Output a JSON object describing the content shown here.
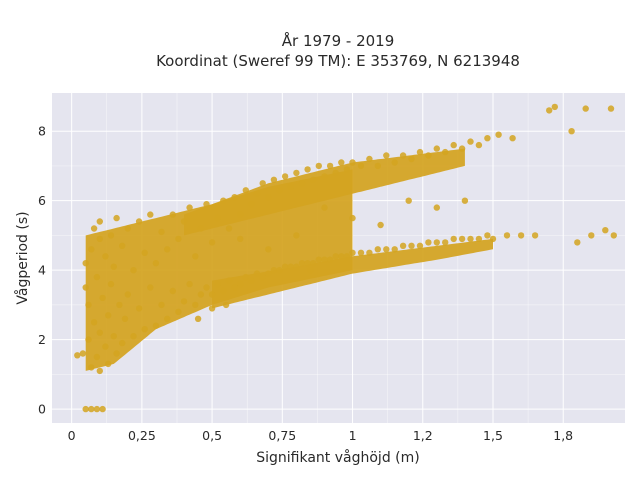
{
  "chart_data": {
    "type": "scatter",
    "title": "År 1979 - 2019",
    "subtitle": "Koordinat (Sweref 99 TM): E 353769, N 6213948",
    "xlabel": "Signifikant våghöjd (m)",
    "ylabel": "Vågperiod (s)",
    "xlim": [
      -0.07,
      1.97
    ],
    "ylim": [
      -0.4,
      9.1
    ],
    "x_ticks": [
      0,
      0.25,
      0.5,
      0.75,
      1,
      1.25,
      1.5,
      1.75
    ],
    "x_tick_labels": [
      "0",
      "0,25",
      "0,5",
      "0,75",
      "1",
      "1,2",
      "1,5",
      "1,8"
    ],
    "y_ticks": [
      0,
      2,
      4,
      6,
      8
    ],
    "y_tick_labels": [
      "0",
      "2",
      "4",
      "6",
      "8"
    ],
    "grid": true,
    "colors": {
      "marker": "#d4a420",
      "plot_bg": "#e5e5ef",
      "grid": "#ffffff"
    },
    "series": [
      {
        "points": [
          [
            0.05,
            0.0
          ],
          [
            0.07,
            0.0
          ],
          [
            0.09,
            0.0
          ],
          [
            0.11,
            0.0
          ],
          [
            0.02,
            1.55
          ],
          [
            0.04,
            1.6
          ],
          [
            0.05,
            3.5
          ],
          [
            0.05,
            4.2
          ],
          [
            0.06,
            2.0
          ],
          [
            0.06,
            3.0
          ],
          [
            0.07,
            1.2
          ],
          [
            0.07,
            4.6
          ],
          [
            0.08,
            2.5
          ],
          [
            0.08,
            5.2
          ],
          [
            0.09,
            1.5
          ],
          [
            0.09,
            3.8
          ],
          [
            0.1,
            1.1
          ],
          [
            0.1,
            2.2
          ],
          [
            0.1,
            4.9
          ],
          [
            0.1,
            5.4
          ],
          [
            0.11,
            3.2
          ],
          [
            0.12,
            1.8
          ],
          [
            0.12,
            4.4
          ],
          [
            0.13,
            1.3
          ],
          [
            0.13,
            2.7
          ],
          [
            0.14,
            3.6
          ],
          [
            0.14,
            5.0
          ],
          [
            0.15,
            2.1
          ],
          [
            0.15,
            4.1
          ],
          [
            0.16,
            1.6
          ],
          [
            0.16,
            5.5
          ],
          [
            0.17,
            3.0
          ],
          [
            0.18,
            1.9
          ],
          [
            0.18,
            4.7
          ],
          [
            0.19,
            2.6
          ],
          [
            0.2,
            3.3
          ],
          [
            0.2,
            5.2
          ],
          [
            0.22,
            2.1
          ],
          [
            0.22,
            4.0
          ],
          [
            0.24,
            2.9
          ],
          [
            0.24,
            5.4
          ],
          [
            0.26,
            2.3
          ],
          [
            0.26,
            4.5
          ],
          [
            0.28,
            3.5
          ],
          [
            0.28,
            5.6
          ],
          [
            0.3,
            2.4
          ],
          [
            0.3,
            4.2
          ],
          [
            0.32,
            3.0
          ],
          [
            0.32,
            5.1
          ],
          [
            0.34,
            2.6
          ],
          [
            0.34,
            4.6
          ],
          [
            0.36,
            3.4
          ],
          [
            0.36,
            5.6
          ],
          [
            0.38,
            2.8
          ],
          [
            0.38,
            4.9
          ],
          [
            0.4,
            3.1
          ],
          [
            0.4,
            5.4
          ],
          [
            0.42,
            3.6
          ],
          [
            0.42,
            5.8
          ],
          [
            0.44,
            3.0
          ],
          [
            0.44,
            4.4
          ],
          [
            0.46,
            3.3
          ],
          [
            0.46,
            5.2
          ],
          [
            0.48,
            3.5
          ],
          [
            0.48,
            5.9
          ],
          [
            0.5,
            3.3
          ],
          [
            0.5,
            4.8
          ],
          [
            0.52,
            3.6
          ],
          [
            0.52,
            5.5
          ],
          [
            0.54,
            3.4
          ],
          [
            0.54,
            6.0
          ],
          [
            0.56,
            3.7
          ],
          [
            0.56,
            5.2
          ],
          [
            0.58,
            3.5
          ],
          [
            0.58,
            6.1
          ],
          [
            0.6,
            3.6
          ],
          [
            0.6,
            5.6
          ],
          [
            0.62,
            3.8
          ],
          [
            0.62,
            6.3
          ],
          [
            0.64,
            3.7
          ],
          [
            0.64,
            5.9
          ],
          [
            0.66,
            3.9
          ],
          [
            0.66,
            6.2
          ],
          [
            0.68,
            3.8
          ],
          [
            0.68,
            6.5
          ],
          [
            0.7,
            3.9
          ],
          [
            0.7,
            6.1
          ],
          [
            0.72,
            4.0
          ],
          [
            0.72,
            6.6
          ],
          [
            0.74,
            4.0
          ],
          [
            0.74,
            6.3
          ],
          [
            0.76,
            4.1
          ],
          [
            0.76,
            6.7
          ],
          [
            0.78,
            4.1
          ],
          [
            0.78,
            6.4
          ],
          [
            0.8,
            4.1
          ],
          [
            0.8,
            6.8
          ],
          [
            0.82,
            4.2
          ],
          [
            0.82,
            6.5
          ],
          [
            0.84,
            4.2
          ],
          [
            0.84,
            6.9
          ],
          [
            0.86,
            4.2
          ],
          [
            0.86,
            6.6
          ],
          [
            0.88,
            4.3
          ],
          [
            0.88,
            7.0
          ],
          [
            0.9,
            4.3
          ],
          [
            0.9,
            6.7
          ],
          [
            0.92,
            4.3
          ],
          [
            0.92,
            7.0
          ],
          [
            0.94,
            4.4
          ],
          [
            0.94,
            6.8
          ],
          [
            0.96,
            4.4
          ],
          [
            0.96,
            7.1
          ],
          [
            0.98,
            4.4
          ],
          [
            0.98,
            6.9
          ],
          [
            1.0,
            4.5
          ],
          [
            1.0,
            7.1
          ],
          [
            1.03,
            4.5
          ],
          [
            1.03,
            7.0
          ],
          [
            1.06,
            4.5
          ],
          [
            1.06,
            7.2
          ],
          [
            1.09,
            4.6
          ],
          [
            1.09,
            7.0
          ],
          [
            1.12,
            4.6
          ],
          [
            1.12,
            7.3
          ],
          [
            1.15,
            4.6
          ],
          [
            1.15,
            7.1
          ],
          [
            1.18,
            4.7
          ],
          [
            1.18,
            7.3
          ],
          [
            1.21,
            4.7
          ],
          [
            1.21,
            7.2
          ],
          [
            1.24,
            4.7
          ],
          [
            1.24,
            7.4
          ],
          [
            1.27,
            4.8
          ],
          [
            1.27,
            7.3
          ],
          [
            1.3,
            4.8
          ],
          [
            1.3,
            7.5
          ],
          [
            1.33,
            4.8
          ],
          [
            1.33,
            7.4
          ],
          [
            1.36,
            4.9
          ],
          [
            1.36,
            7.6
          ],
          [
            1.39,
            4.9
          ],
          [
            1.39,
            7.5
          ],
          [
            1.42,
            4.9
          ],
          [
            1.42,
            7.7
          ],
          [
            1.45,
            4.9
          ],
          [
            1.45,
            7.6
          ],
          [
            1.48,
            5.0
          ],
          [
            1.48,
            7.8
          ],
          [
            1.5,
            4.9
          ],
          [
            1.52,
            7.9
          ],
          [
            1.55,
            5.0
          ],
          [
            1.57,
            7.8
          ],
          [
            1.6,
            5.0
          ],
          [
            1.65,
            5.0
          ],
          [
            1.7,
            8.6
          ],
          [
            1.72,
            8.7
          ],
          [
            1.78,
            8.0
          ],
          [
            1.8,
            4.8
          ],
          [
            1.83,
            8.65
          ],
          [
            1.85,
            5.0
          ],
          [
            1.9,
            5.15
          ],
          [
            1.92,
            8.65
          ],
          [
            1.93,
            5.0
          ],
          [
            0.85,
            4.0
          ],
          [
            0.9,
            5.8
          ],
          [
            1.0,
            5.5
          ],
          [
            1.1,
            5.3
          ],
          [
            1.2,
            6.0
          ],
          [
            1.3,
            5.8
          ],
          [
            1.4,
            6.0
          ],
          [
            0.6,
            4.9
          ],
          [
            0.7,
            4.6
          ],
          [
            0.8,
            5.0
          ],
          [
            0.5,
            2.9
          ],
          [
            0.45,
            2.6
          ],
          [
            0.55,
            3.0
          ]
        ]
      }
    ]
  }
}
